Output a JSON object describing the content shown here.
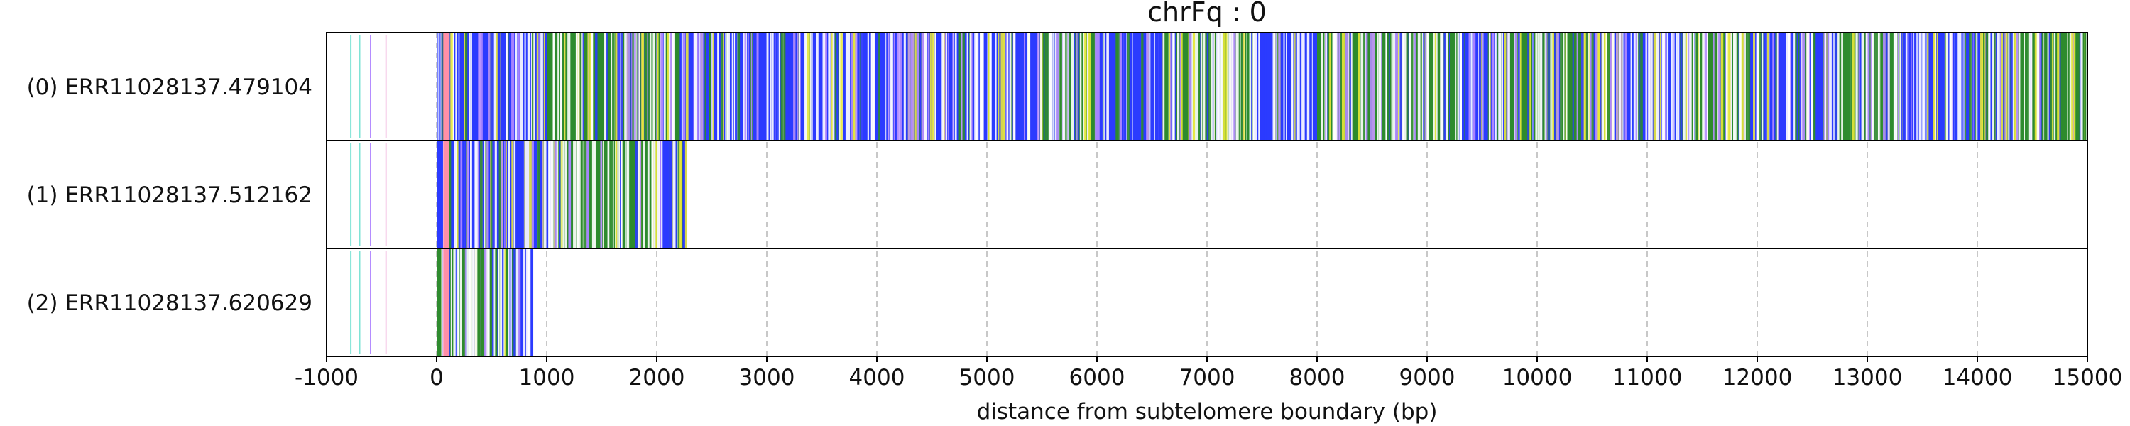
{
  "chart_data": {
    "type": "heatmap",
    "title": "chrFq : 0",
    "xlabel": "distance from subtelomere boundary (bp)",
    "ylabel": "",
    "xlim": [
      -1000,
      15000
    ],
    "xticks": [
      -1000,
      0,
      1000,
      2000,
      3000,
      4000,
      5000,
      6000,
      7000,
      8000,
      9000,
      10000,
      11000,
      12000,
      13000,
      14000,
      15000
    ],
    "xtick_labels": [
      "-1000",
      "0",
      "1000",
      "2000",
      "3000",
      "4000",
      "5000",
      "6000",
      "7000",
      "8000",
      "9000",
      "10000",
      "11000",
      "12000",
      "13000",
      "14000",
      "15000"
    ],
    "grid": "vertical dashed lines at x ticks",
    "colors": {
      "blue": "#2b3bff",
      "green": "#2e8b2e",
      "yellow": "#e8e83a",
      "white": "#ffffff",
      "pink": "#ff8fa8",
      "cyan": "#7fe3d6",
      "violet": "#b48cff",
      "light_pink": "#f6c9e6"
    },
    "rows": [
      {
        "label": "(0) ERR11028137.479104",
        "start": 0,
        "end": 15000,
        "segments": [
          {
            "x0": 0,
            "x1": 1000,
            "color": "blue"
          },
          {
            "x0": 1000,
            "x1": 2200,
            "color": "green"
          },
          {
            "x0": 2200,
            "x1": 2700,
            "color": "blue"
          },
          {
            "x0": 2700,
            "x1": 3600,
            "color": "blue"
          },
          {
            "x0": 3600,
            "x1": 4200,
            "color": "blue"
          },
          {
            "x0": 4200,
            "x1": 5000,
            "color": "blue"
          },
          {
            "x0": 5000,
            "x1": 5500,
            "color": "blue"
          },
          {
            "x0": 5500,
            "x1": 6000,
            "color": "green"
          },
          {
            "x0": 6000,
            "x1": 6600,
            "color": "blue"
          },
          {
            "x0": 6600,
            "x1": 7400,
            "color": "green"
          },
          {
            "x0": 7400,
            "x1": 8000,
            "color": "blue"
          },
          {
            "x0": 8000,
            "x1": 9300,
            "color": "green"
          },
          {
            "x0": 9300,
            "x1": 9700,
            "color": "blue"
          },
          {
            "x0": 9700,
            "x1": 10400,
            "color": "green"
          },
          {
            "x0": 10400,
            "x1": 10700,
            "color": "yellow"
          },
          {
            "x0": 10700,
            "x1": 11300,
            "color": "blue"
          },
          {
            "x0": 11300,
            "x1": 11900,
            "color": "green"
          },
          {
            "x0": 11900,
            "x1": 12700,
            "color": "blue"
          },
          {
            "x0": 12700,
            "x1": 13300,
            "color": "green"
          },
          {
            "x0": 13300,
            "x1": 14300,
            "color": "blue"
          },
          {
            "x0": 14300,
            "x1": 15000,
            "color": "green"
          }
        ]
      },
      {
        "label": "(1) ERR11028137.512162",
        "start": 0,
        "end": 2270,
        "segments": [
          {
            "x0": 0,
            "x1": 1050,
            "color": "blue"
          },
          {
            "x0": 1050,
            "x1": 1500,
            "color": "green"
          },
          {
            "x0": 1500,
            "x1": 2000,
            "color": "green"
          },
          {
            "x0": 2000,
            "x1": 2270,
            "color": "blue"
          }
        ]
      },
      {
        "label": "(2) ERR11028137.620629",
        "start": 0,
        "end": 880,
        "segments": [
          {
            "x0": 0,
            "x1": 650,
            "color": "green"
          },
          {
            "x0": 650,
            "x1": 880,
            "color": "blue"
          }
        ]
      }
    ]
  }
}
